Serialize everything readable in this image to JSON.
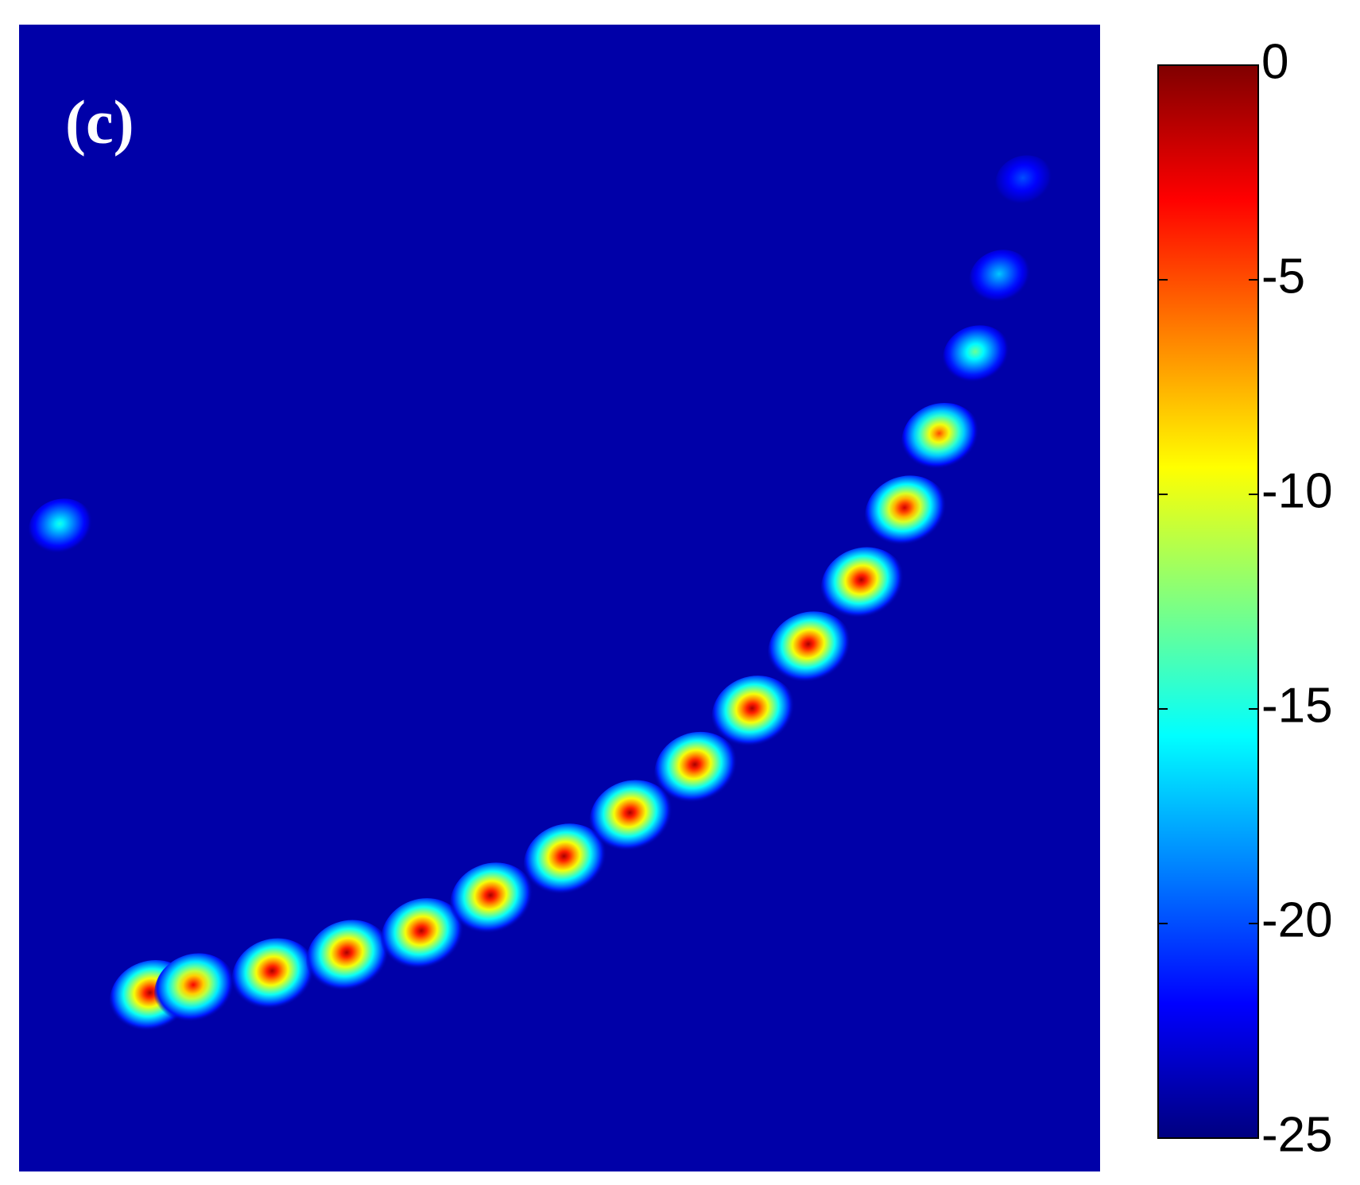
{
  "chart_data": {
    "type": "heatmap",
    "annotation": "(c)",
    "xlim": [
      0,
      1
    ],
    "ylim": [
      0,
      1
    ],
    "x": [
      0.123,
      0.163,
      0.236,
      0.305,
      0.374,
      0.438,
      0.506,
      0.567,
      0.627,
      0.68,
      0.732,
      0.781,
      0.821,
      0.853,
      0.886,
      0.908,
      0.93,
      0.039
    ],
    "y": [
      0.151,
      0.158,
      0.17,
      0.186,
      0.205,
      0.236,
      0.27,
      0.308,
      0.35,
      0.399,
      0.455,
      0.511,
      0.574,
      0.639,
      0.711,
      0.779,
      0.863,
      0.561
    ],
    "values": [
      -1,
      -3,
      -1,
      -1,
      -1,
      -1,
      -1,
      -1,
      -1,
      -1,
      -1,
      -1,
      -2,
      -5,
      -13,
      -17,
      -20,
      -15
    ],
    "colormap": "jet",
    "clim": [
      -25,
      0
    ],
    "cticks": [
      0,
      -5,
      -10,
      -15,
      -20,
      -25
    ]
  }
}
